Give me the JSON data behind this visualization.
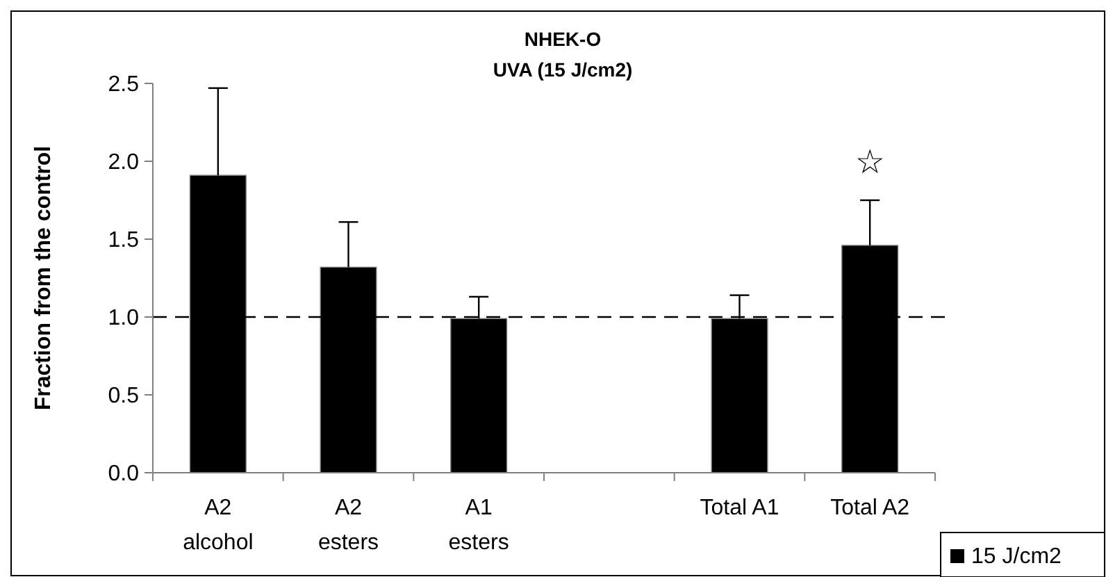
{
  "chart_data": {
    "type": "bar",
    "title": "NHEK-O",
    "subtitle": "UVA (15 J/cm2)",
    "ylabel": "Fraction from the control",
    "categories": [
      "A2 alcohol",
      "A2 esters",
      "A1 esters",
      null,
      "Total A1",
      "Total A2"
    ],
    "series": [
      {
        "name": "15 J/cm2",
        "color": "#000000",
        "values": [
          1.91,
          1.32,
          0.99,
          null,
          0.99,
          1.46
        ],
        "errors": [
          [
            1.91,
            2.47
          ],
          [
            1.32,
            1.61
          ],
          [
            0.99,
            1.13
          ],
          null,
          [
            0.99,
            1.14
          ],
          [
            1.46,
            1.75
          ]
        ]
      }
    ],
    "ylim": [
      0,
      2.5
    ],
    "yticks": [
      {
        "value": 0,
        "label": "0.0"
      },
      {
        "value": 0.5,
        "label": "0.5"
      },
      {
        "value": 1,
        "label": "1.0"
      },
      {
        "value": 1.5,
        "label": "1.5"
      },
      {
        "value": 2,
        "label": "2.0"
      },
      {
        "value": 2.5,
        "label": "2.5"
      }
    ],
    "ref_lines": [
      {
        "axis": "y",
        "value": 1,
        "line_style": "dashed",
        "color": "#000000"
      }
    ],
    "annotations": [
      "☆"
    ],
    "grid": false,
    "legend": "bottom right"
  }
}
